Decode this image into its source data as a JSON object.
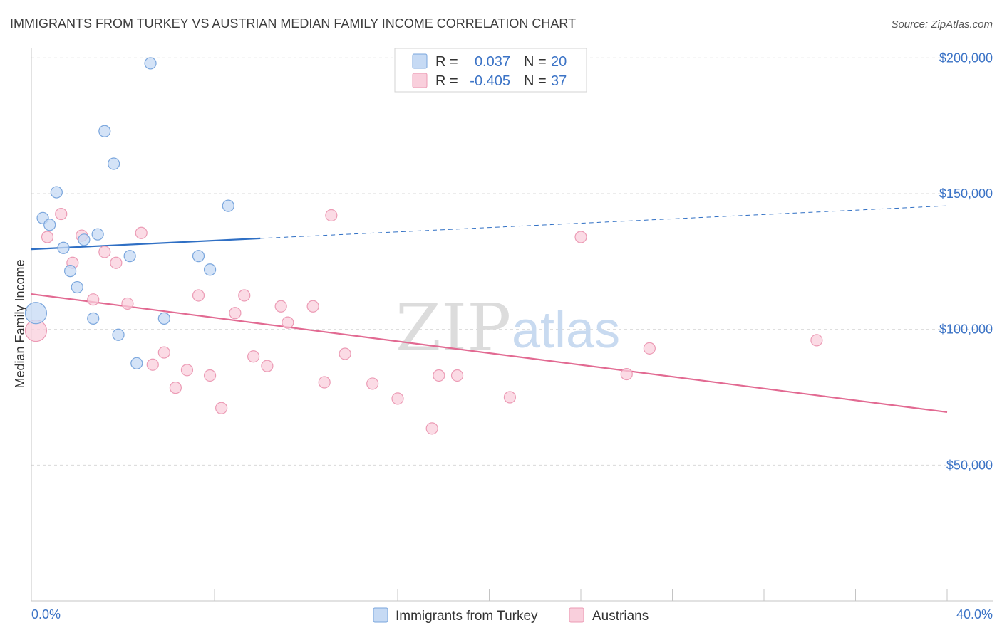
{
  "title": "IMMIGRANTS FROM TURKEY VS AUSTRIAN MEDIAN FAMILY INCOME CORRELATION CHART",
  "source": "Source: ZipAtlas.com",
  "watermark": {
    "zip": "ZIP",
    "atlas": "atlas"
  },
  "colors": {
    "blue_fill": "#c6daf4",
    "blue_stroke": "#7aa6dd",
    "blue_line": "#2f6fc4",
    "pink_fill": "#f9cfdc",
    "pink_stroke": "#ec9bb5",
    "pink_line": "#e26a92",
    "grid": "#d9d9d9",
    "tick_text": "#3b73c6"
  },
  "legend": {
    "rows": [
      {
        "r_label": "R =",
        "r_value": "0.037",
        "n_label": "N =",
        "n_value": "20"
      },
      {
        "r_label": "R =",
        "r_value": "-0.405",
        "n_label": "N =",
        "n_value": "37"
      }
    ]
  },
  "bottom_legend": [
    "Immigrants from Turkey",
    "Austrians"
  ],
  "chart_data": {
    "type": "scatter",
    "title": "IMMIGRANTS FROM TURKEY VS AUSTRIAN MEDIAN FAMILY INCOME CORRELATION CHART",
    "xlabel": "",
    "ylabel": "Median Family Income",
    "xlim": [
      0,
      40
    ],
    "ylim": [
      0,
      200000
    ],
    "x_tick_labels": [
      "0.0%",
      "40.0%"
    ],
    "y_tick_labels": [
      "$50,000",
      "$100,000",
      "$150,000",
      "$200,000"
    ],
    "y_ticks": [
      50000,
      100000,
      150000,
      200000
    ],
    "grid": "horizontal dashed",
    "legend_placement": "top-center",
    "series": [
      {
        "name": "Immigrants from Turkey",
        "r": 0.037,
        "n": 20,
        "points": [
          {
            "x": 0.2,
            "y": 106000,
            "big": true
          },
          {
            "x": 0.5,
            "y": 141000
          },
          {
            "x": 0.8,
            "y": 138500
          },
          {
            "x": 1.1,
            "y": 150500
          },
          {
            "x": 1.4,
            "y": 130000
          },
          {
            "x": 1.7,
            "y": 121500
          },
          {
            "x": 2.0,
            "y": 115500
          },
          {
            "x": 2.3,
            "y": 133000
          },
          {
            "x": 2.7,
            "y": 104000
          },
          {
            "x": 2.9,
            "y": 135000
          },
          {
            "x": 3.2,
            "y": 173000
          },
          {
            "x": 3.6,
            "y": 161000
          },
          {
            "x": 3.8,
            "y": 98000
          },
          {
            "x": 4.3,
            "y": 127000
          },
          {
            "x": 4.6,
            "y": 87500
          },
          {
            "x": 5.2,
            "y": 198000
          },
          {
            "x": 5.8,
            "y": 104000
          },
          {
            "x": 7.3,
            "y": 127000
          },
          {
            "x": 7.8,
            "y": 122000
          },
          {
            "x": 8.6,
            "y": 145500
          }
        ],
        "trend": {
          "x0": 0,
          "y0": 129500,
          "x_solid_end": 10,
          "x1": 40,
          "y1": 145500
        }
      },
      {
        "name": "Austrians",
        "r": -0.405,
        "n": 37,
        "points": [
          {
            "x": 0.2,
            "y": 99500,
            "big": true
          },
          {
            "x": 0.7,
            "y": 134000
          },
          {
            "x": 1.3,
            "y": 142500
          },
          {
            "x": 1.8,
            "y": 124500
          },
          {
            "x": 2.2,
            "y": 134500
          },
          {
            "x": 2.7,
            "y": 111000
          },
          {
            "x": 3.2,
            "y": 128500
          },
          {
            "x": 3.7,
            "y": 124500
          },
          {
            "x": 4.2,
            "y": 109500
          },
          {
            "x": 4.8,
            "y": 135500
          },
          {
            "x": 5.3,
            "y": 87000
          },
          {
            "x": 5.8,
            "y": 91500
          },
          {
            "x": 6.3,
            "y": 78500
          },
          {
            "x": 6.8,
            "y": 85000
          },
          {
            "x": 7.3,
            "y": 112500
          },
          {
            "x": 7.8,
            "y": 83000
          },
          {
            "x": 8.3,
            "y": 71000
          },
          {
            "x": 8.9,
            "y": 106000
          },
          {
            "x": 9.3,
            "y": 112500
          },
          {
            "x": 9.7,
            "y": 90000
          },
          {
            "x": 10.3,
            "y": 86500
          },
          {
            "x": 10.9,
            "y": 108500
          },
          {
            "x": 11.2,
            "y": 102500
          },
          {
            "x": 12.3,
            "y": 108500
          },
          {
            "x": 12.8,
            "y": 80500
          },
          {
            "x": 13.1,
            "y": 142000
          },
          {
            "x": 13.7,
            "y": 91000
          },
          {
            "x": 14.9,
            "y": 80000
          },
          {
            "x": 16.0,
            "y": 74500
          },
          {
            "x": 17.5,
            "y": 63500
          },
          {
            "x": 17.8,
            "y": 83000
          },
          {
            "x": 18.6,
            "y": 83000
          },
          {
            "x": 20.9,
            "y": 75000
          },
          {
            "x": 24.0,
            "y": 134000
          },
          {
            "x": 26.0,
            "y": 83500
          },
          {
            "x": 27.0,
            "y": 93000
          },
          {
            "x": 34.3,
            "y": 96000
          }
        ],
        "trend": {
          "x0": 0,
          "y0": 113000,
          "x1": 40,
          "y1": 69500
        }
      }
    ]
  }
}
